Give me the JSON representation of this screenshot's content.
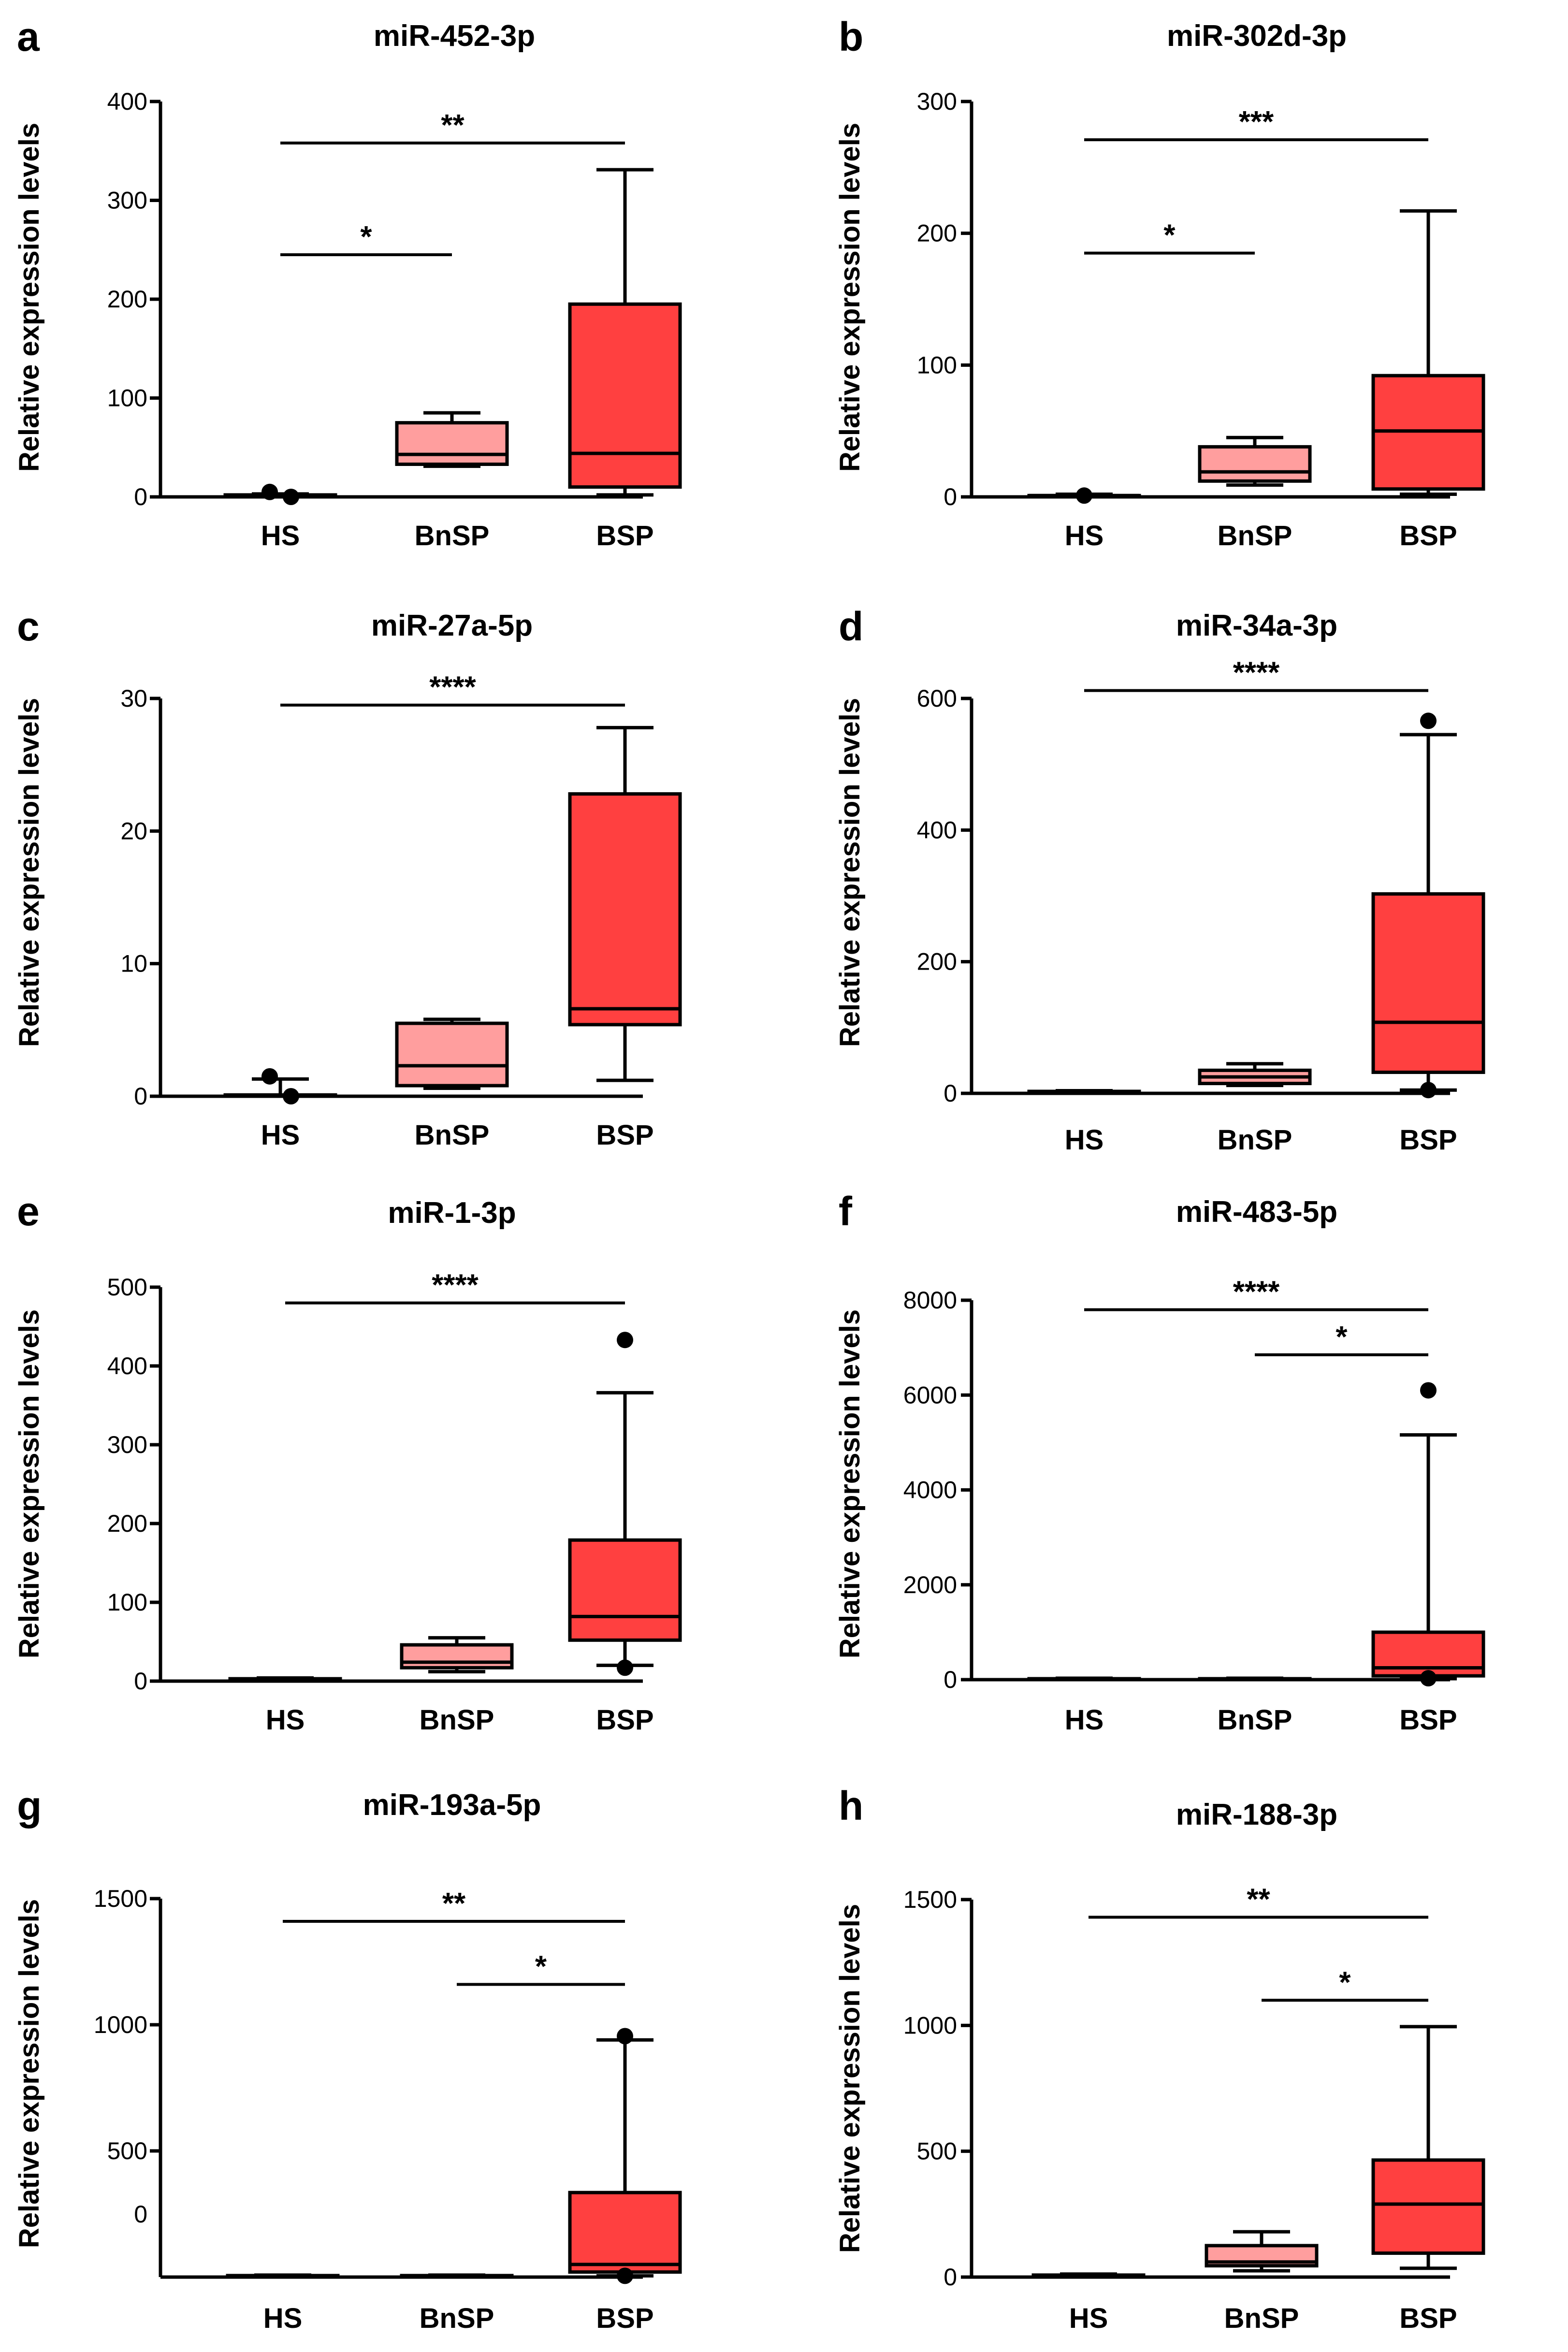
{
  "chart_data": [
    {
      "type": "box",
      "panel_label": "a",
      "title": "miR-452-3p",
      "ylabel": "Relative expression levels",
      "xlabel": "",
      "ylim": [
        0,
        400
      ],
      "yticks": [
        0,
        100,
        200,
        300,
        400
      ],
      "ytick_labels": [
        "0",
        "100",
        "200",
        "300",
        "400"
      ],
      "categories": [
        "HS",
        "BnSP",
        "BSP"
      ],
      "boxes": [
        {
          "group": "HS",
          "min": 0,
          "q1": 0,
          "median": 1,
          "q3": 2,
          "max": 3,
          "color": "#ffffff",
          "outliers": [
            5,
            0
          ]
        },
        {
          "group": "BnSP",
          "min": 31,
          "q1": 33,
          "median": 43,
          "q3": 75,
          "max": 85,
          "color": "#ff9e9e",
          "outliers": []
        },
        {
          "group": "BSP",
          "min": 2,
          "q1": 10,
          "median": 44,
          "q3": 195,
          "max": 331,
          "color": "#ff4040",
          "outliers": []
        }
      ],
      "significance": [
        {
          "from": "HS",
          "to": "BnSP",
          "label": "*",
          "y": 245
        },
        {
          "from": "HS",
          "to": "BSP",
          "label": "**",
          "y": 358
        }
      ]
    },
    {
      "type": "box",
      "panel_label": "b",
      "title": "miR-302d-3p",
      "ylabel": "Relative expression levels",
      "xlabel": "",
      "ylim": [
        0,
        300
      ],
      "yticks": [
        0,
        100,
        200,
        300
      ],
      "ytick_labels": [
        "0",
        "100",
        "200",
        "300"
      ],
      "categories": [
        "HS",
        "BnSP",
        "BSP"
      ],
      "boxes": [
        {
          "group": "HS",
          "min": 0,
          "q1": 0,
          "median": 1,
          "q3": 1,
          "max": 2,
          "color": "#ffffff",
          "outliers": [
            1
          ]
        },
        {
          "group": "BnSP",
          "min": 9,
          "q1": 12,
          "median": 19,
          "q3": 38,
          "max": 45,
          "color": "#ff9e9e",
          "outliers": []
        },
        {
          "group": "BSP",
          "min": 2,
          "q1": 6,
          "median": 50,
          "q3": 92,
          "max": 217,
          "color": "#ff4040",
          "outliers": []
        }
      ],
      "significance": [
        {
          "from": "HS",
          "to": "BnSP",
          "label": "*",
          "y": 185
        },
        {
          "from": "HS",
          "to": "BSP",
          "label": "***",
          "y": 271
        }
      ]
    },
    {
      "type": "box",
      "panel_label": "c",
      "title": "miR-27a-5p",
      "ylabel": "Relative expression levels",
      "xlabel": "",
      "ylim": [
        0,
        30
      ],
      "yticks": [
        0,
        10,
        20,
        30
      ],
      "ytick_labels": [
        "0",
        "10",
        "20",
        "30"
      ],
      "categories": [
        "HS",
        "BnSP",
        "BSP"
      ],
      "boxes": [
        {
          "group": "HS",
          "min": 0,
          "q1": 0,
          "median": 0.05,
          "q3": 0.1,
          "max": 1.3,
          "color": "#ffffff",
          "outliers": [
            1.5,
            0
          ]
        },
        {
          "group": "BnSP",
          "min": 0.6,
          "q1": 0.8,
          "median": 2.3,
          "q3": 5.5,
          "max": 5.8,
          "color": "#ff9e9e",
          "outliers": []
        },
        {
          "group": "BSP",
          "min": 1.2,
          "q1": 5.4,
          "median": 6.6,
          "q3": 22.8,
          "max": 27.8,
          "color": "#ff4040",
          "outliers": []
        }
      ],
      "significance": [
        {
          "from": "HS",
          "to": "BSP",
          "label": "****",
          "y": 29.5
        }
      ]
    },
    {
      "type": "box",
      "panel_label": "d",
      "title": "miR-34a-3p",
      "ylabel": "Relative expression levels",
      "xlabel": "",
      "ylim": [
        0,
        600
      ],
      "yticks": [
        0,
        200,
        400,
        600
      ],
      "ytick_labels": [
        "0",
        "200",
        "400",
        "600"
      ],
      "categories": [
        "HS",
        "BnSP",
        "BSP"
      ],
      "boxes": [
        {
          "group": "HS",
          "min": 0,
          "q1": 1,
          "median": 2,
          "q3": 3,
          "max": 4,
          "color": "#ffffff",
          "outliers": []
        },
        {
          "group": "BnSP",
          "min": 12,
          "q1": 15,
          "median": 25,
          "q3": 35,
          "max": 45,
          "color": "#ff9e9e",
          "outliers": []
        },
        {
          "group": "BSP",
          "min": 5,
          "q1": 32,
          "median": 108,
          "q3": 303,
          "max": 545,
          "color": "#ff4040",
          "outliers": [
            566,
            5
          ]
        }
      ],
      "significance": [
        {
          "from": "HS",
          "to": "BSP",
          "label": "****",
          "y": 612
        }
      ]
    },
    {
      "type": "box",
      "panel_label": "e",
      "title": "miR-1-3p",
      "ylabel": "Relative expression levels",
      "xlabel": "",
      "ylim": [
        0,
        500
      ],
      "yticks": [
        0,
        100,
        200,
        300,
        400,
        500
      ],
      "ytick_labels": [
        "0",
        "100",
        "200",
        "300",
        "400",
        "500"
      ],
      "categories": [
        "HS",
        "BnSP",
        "BSP"
      ],
      "boxes": [
        {
          "group": "HS",
          "min": 0,
          "q1": 1,
          "median": 2,
          "q3": 3,
          "max": 4,
          "color": "#ffffff",
          "outliers": []
        },
        {
          "group": "BnSP",
          "min": 12,
          "q1": 17,
          "median": 24,
          "q3": 46,
          "max": 55,
          "color": "#ff9e9e",
          "outliers": []
        },
        {
          "group": "BSP",
          "min": 20,
          "q1": 52,
          "median": 82,
          "q3": 179,
          "max": 366,
          "color": "#ff4040",
          "outliers": [
            433,
            17
          ]
        }
      ],
      "significance": [
        {
          "from": "HS",
          "to": "BSP",
          "label": "****",
          "y": 480
        }
      ]
    },
    {
      "type": "box",
      "panel_label": "f",
      "title": "miR-483-5p",
      "ylabel": "Relative expression levels",
      "xlabel": "",
      "ylim": [
        0,
        8000
      ],
      "yticks": [
        0,
        2000,
        4000,
        6000,
        8000
      ],
      "ytick_labels": [
        "0",
        "2000",
        "4000",
        "6000",
        "8000"
      ],
      "categories": [
        "HS",
        "BnSP",
        "BSP"
      ],
      "boxes": [
        {
          "group": "HS",
          "min": 0,
          "q1": 5,
          "median": 10,
          "q3": 20,
          "max": 30,
          "color": "#ffffff",
          "outliers": []
        },
        {
          "group": "BnSP",
          "min": 0,
          "q1": 5,
          "median": 10,
          "q3": 20,
          "max": 30,
          "color": "#ff9e9e",
          "outliers": []
        },
        {
          "group": "BSP",
          "min": 20,
          "q1": 80,
          "median": 250,
          "q3": 1000,
          "max": 5160,
          "color": "#ff4040",
          "outliers": [
            6100,
            30
          ]
        }
      ],
      "significance": [
        {
          "from": "BnSP",
          "to": "BSP",
          "label": "*",
          "y": 6850
        },
        {
          "from": "HS",
          "to": "BSP",
          "label": "****",
          "y": 7800
        }
      ]
    },
    {
      "type": "box",
      "panel_label": "g",
      "title": "miR-193a-5p",
      "ylabel": "Relative expression levels",
      "xlabel": "",
      "ylim": [
        0,
        1500
      ],
      "yticks": [
        500,
        1000,
        1500
      ],
      "ytick_labels": [
        "500",
        "1000",
        "1500"
      ],
      "extra_tick_text": "0",
      "categories": [
        "HS",
        "BnSP",
        "BSP"
      ],
      "boxes": [
        {
          "group": "HS",
          "min": 0,
          "q1": 2,
          "median": 4,
          "q3": 6,
          "max": 8,
          "color": "#ffffff",
          "outliers": []
        },
        {
          "group": "BnSP",
          "min": 0,
          "q1": 2,
          "median": 4,
          "q3": 6,
          "max": 8,
          "color": "#ff9e9e",
          "outliers": []
        },
        {
          "group": "BSP",
          "min": 5,
          "q1": 20,
          "median": 50,
          "q3": 335,
          "max": 940,
          "color": "#ff4040",
          "outliers": [
            955,
            5
          ]
        }
      ],
      "significance": [
        {
          "from": "BnSP",
          "to": "BSP",
          "label": "*",
          "y": 1160
        },
        {
          "from": "HS",
          "to": "BSP",
          "label": "**",
          "y": 1410
        }
      ]
    },
    {
      "type": "box",
      "panel_label": "h",
      "title": "miR-188-3p",
      "ylabel": "Relative expression levels",
      "xlabel": "",
      "ylim": [
        0,
        1500
      ],
      "yticks": [
        0,
        500,
        1000,
        1500
      ],
      "ytick_labels": [
        "0",
        "500",
        "1000",
        "1500"
      ],
      "categories": [
        "HS",
        "BnSP",
        "BSP"
      ],
      "boxes": [
        {
          "group": "HS",
          "min": 0,
          "q1": 2,
          "median": 5,
          "q3": 8,
          "max": 12,
          "color": "#ffffff",
          "outliers": []
        },
        {
          "group": "BnSP",
          "min": 25,
          "q1": 45,
          "median": 60,
          "q3": 125,
          "max": 180,
          "color": "#ff9e9e",
          "outliers": []
        },
        {
          "group": "BSP",
          "min": 35,
          "q1": 95,
          "median": 290,
          "q3": 465,
          "max": 995,
          "color": "#ff4040",
          "outliers": []
        }
      ],
      "significance": [
        {
          "from": "BnSP",
          "to": "BSP",
          "label": "*",
          "y": 1100
        },
        {
          "from": "HS",
          "to": "BSP",
          "label": "**",
          "y": 1430
        }
      ]
    }
  ]
}
